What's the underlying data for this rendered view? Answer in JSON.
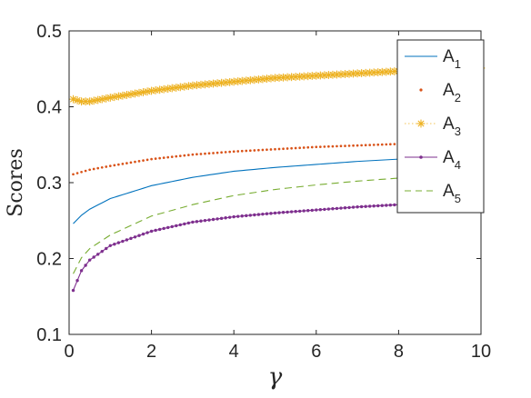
{
  "chart_data": {
    "type": "line",
    "title": "",
    "xlabel": "γ",
    "ylabel": "Scores",
    "xlim": [
      0,
      10
    ],
    "ylim": [
      0.1,
      0.5
    ],
    "xticks": [
      0,
      2,
      4,
      6,
      8,
      10
    ],
    "xtick_labels": [
      "0",
      "2",
      "4",
      "6",
      "8",
      "10"
    ],
    "yticks": [
      0.1,
      0.2,
      0.3,
      0.4,
      0.5
    ],
    "ytick_labels": [
      "0.1",
      "0.2",
      "0.3",
      "0.4",
      "0.5"
    ],
    "grid": false,
    "legend_position": "top-right",
    "x": [
      0.1,
      0.3,
      0.5,
      1,
      2,
      3,
      4,
      5,
      6,
      7,
      8,
      9,
      10
    ],
    "series": [
      {
        "name": "A1",
        "legend_main": "A",
        "legend_sub": "1",
        "style": "solid",
        "color": "#0072BD",
        "values": [
          0.246,
          0.257,
          0.265,
          0.279,
          0.296,
          0.307,
          0.315,
          0.32,
          0.324,
          0.328,
          0.331,
          0.333,
          0.335
        ]
      },
      {
        "name": "A2",
        "legend_main": "A",
        "legend_sub": "2",
        "style": "dotted",
        "color": "#D95319",
        "values": [
          0.311,
          0.314,
          0.317,
          0.322,
          0.331,
          0.337,
          0.341,
          0.344,
          0.347,
          0.349,
          0.351,
          0.352,
          0.354
        ]
      },
      {
        "name": "A3",
        "legend_main": "A",
        "legend_sub": "3",
        "style": "star-marker",
        "color": "#EDB120",
        "values": [
          0.41,
          0.407,
          0.407,
          0.412,
          0.421,
          0.428,
          0.433,
          0.438,
          0.441,
          0.444,
          0.447,
          0.449,
          0.451
        ]
      },
      {
        "name": "A4",
        "legend_main": "A",
        "legend_sub": "4",
        "style": "solid-dot",
        "color": "#7E2F8E",
        "values": [
          0.158,
          0.184,
          0.198,
          0.217,
          0.236,
          0.248,
          0.255,
          0.26,
          0.264,
          0.268,
          0.271,
          0.273,
          0.275
        ]
      },
      {
        "name": "A5",
        "legend_main": "A",
        "legend_sub": "5",
        "style": "dashed",
        "color": "#77AC30",
        "values": [
          0.18,
          0.201,
          0.213,
          0.231,
          0.256,
          0.271,
          0.283,
          0.291,
          0.297,
          0.302,
          0.306,
          0.309,
          0.312
        ]
      }
    ]
  }
}
